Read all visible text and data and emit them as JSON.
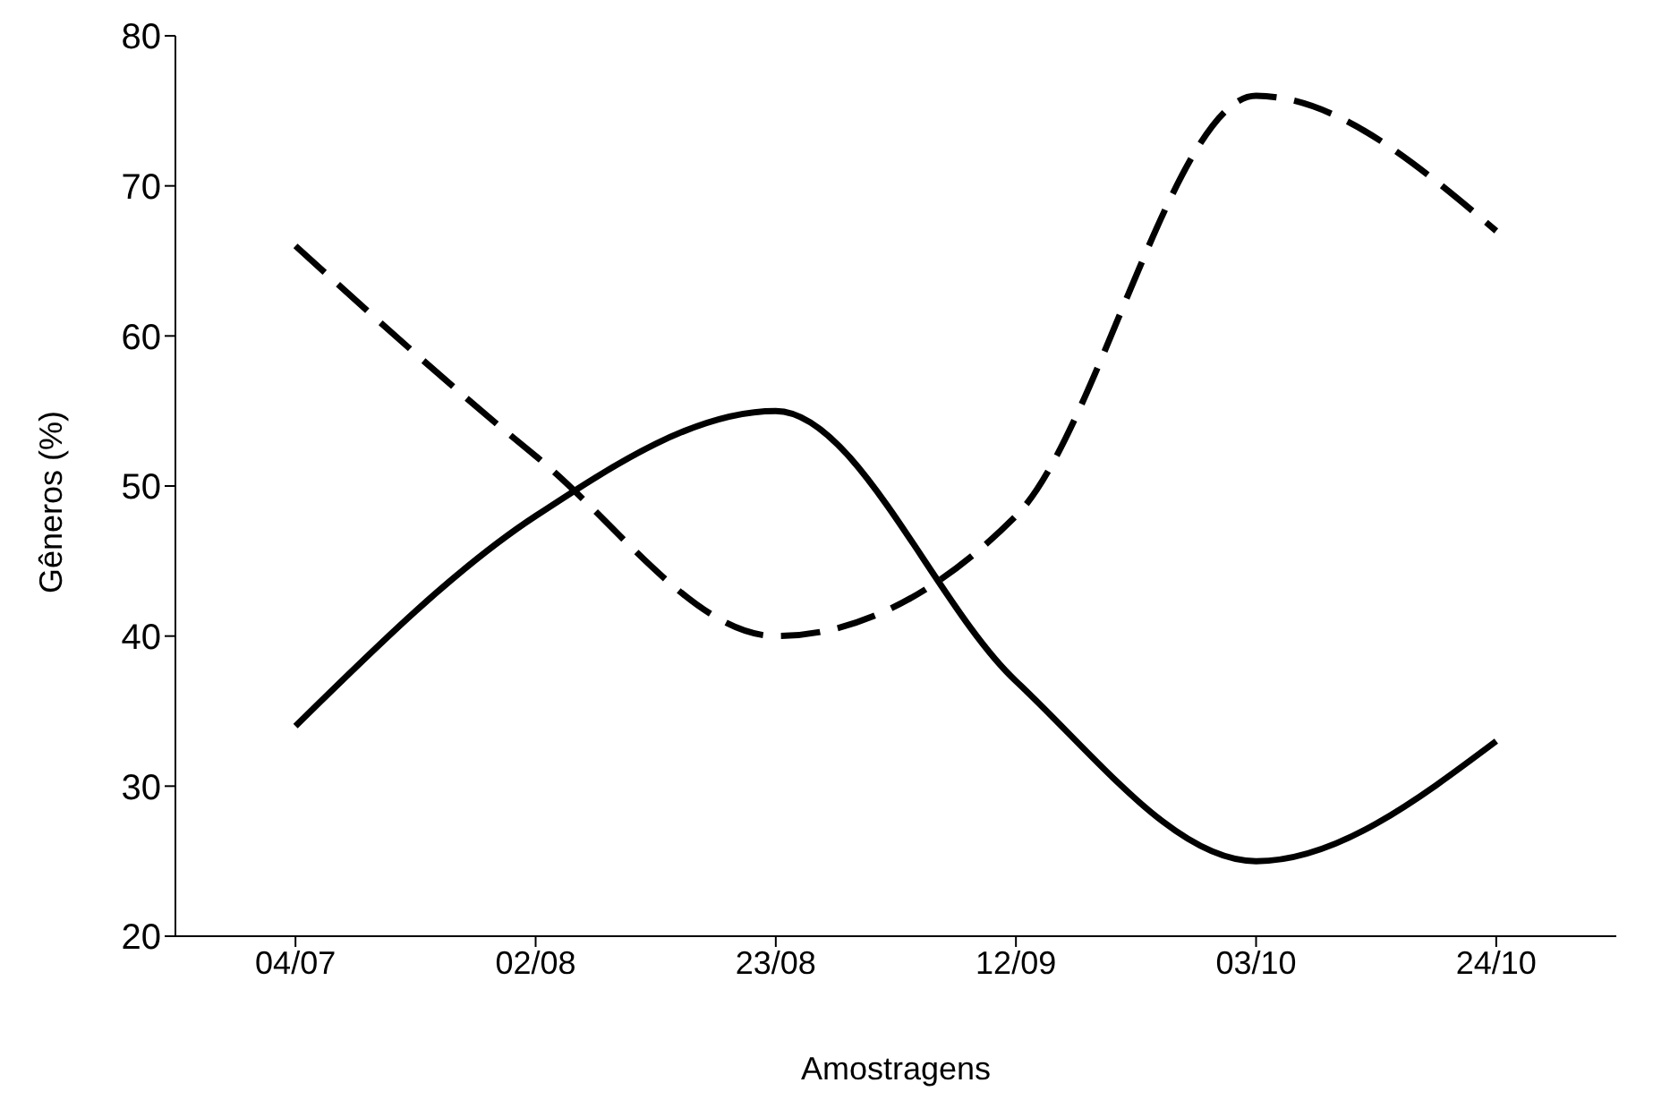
{
  "chart_data": {
    "type": "line",
    "xlabel": "Amostragens",
    "ylabel": "Gêneros (%)",
    "categories": [
      "04/07",
      "02/08",
      "23/08",
      "12/09",
      "03/10",
      "24/10"
    ],
    "series": [
      {
        "color": "#000000",
        "line_style": "solid",
        "values": [
          34,
          48,
          55,
          37,
          25,
          33
        ]
      },
      {
        "color": "#000000",
        "line_style": "dashed",
        "values": [
          66,
          52,
          40,
          48,
          76,
          67
        ]
      }
    ],
    "ylim": [
      20,
      80
    ],
    "yticks": [
      20,
      30,
      40,
      50,
      60,
      70,
      80
    ],
    "grid": false,
    "legend": false,
    "marker": "none"
  }
}
